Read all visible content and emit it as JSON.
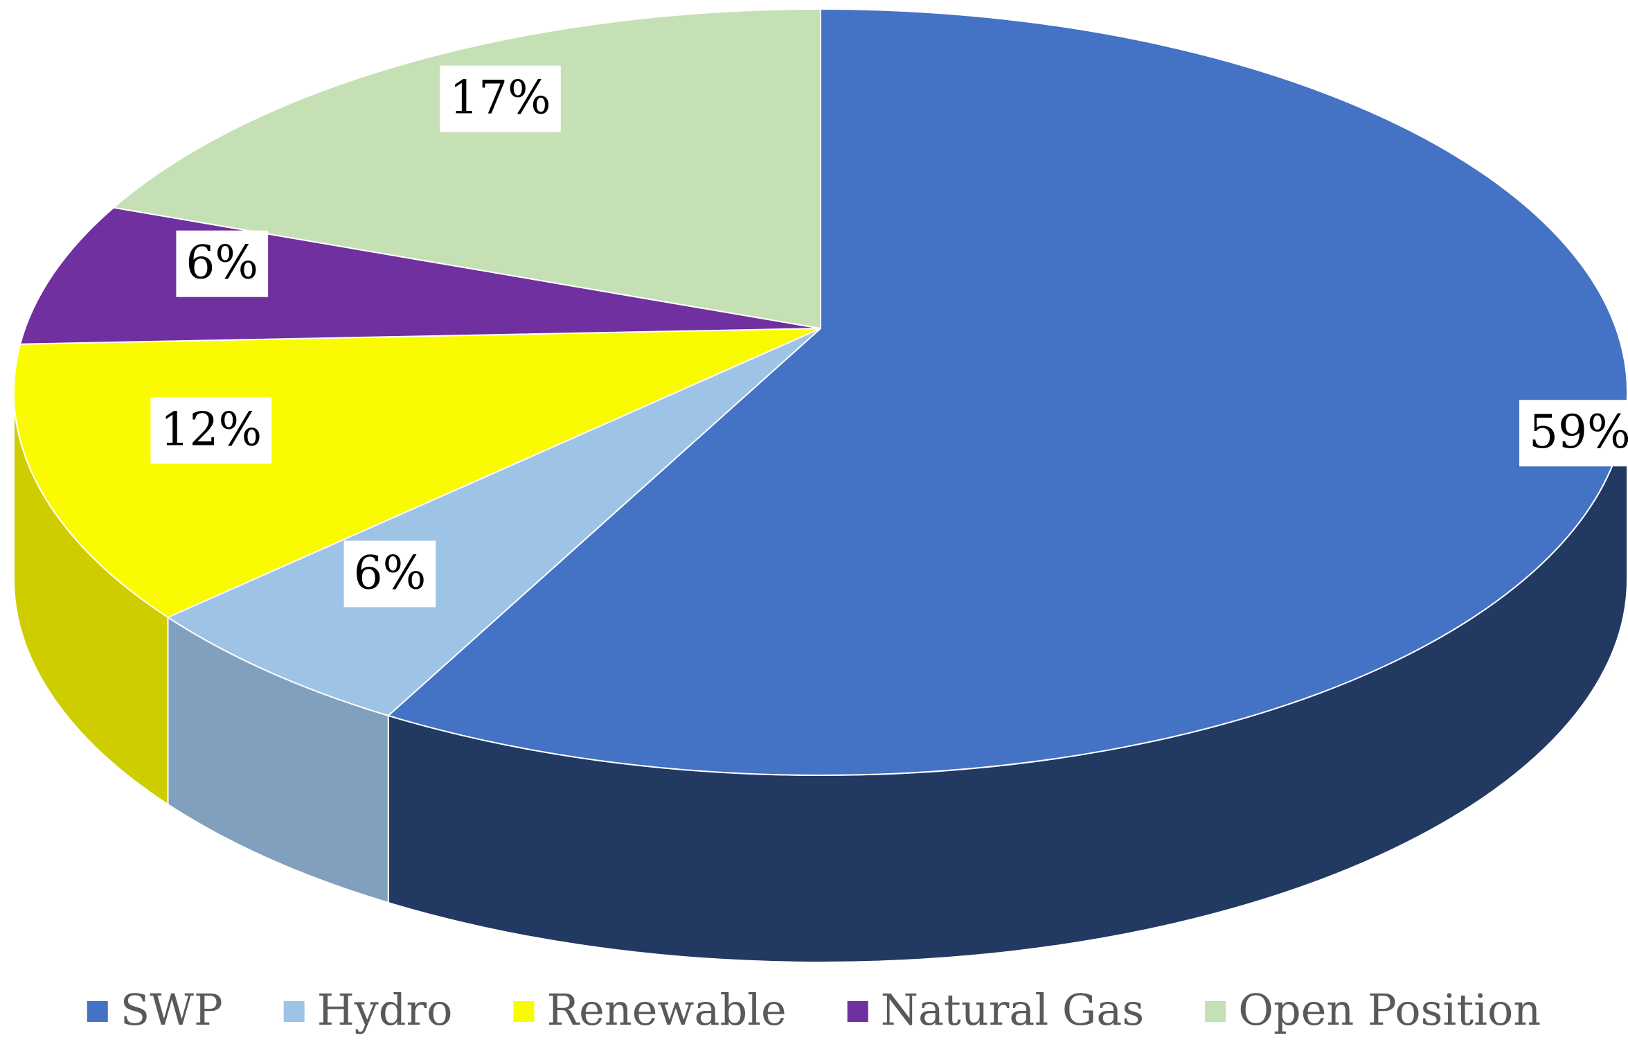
{
  "chart_data": {
    "type": "pie",
    "categories": [
      "SWP",
      "Hydro",
      "Renewable",
      "Natural Gas",
      "Open Position"
    ],
    "values": [
      59,
      6,
      12,
      6,
      17
    ],
    "value_labels": [
      "59%",
      "6%",
      "12%",
      "6%",
      "17%"
    ],
    "colors": [
      "#4472c4",
      "#9dc3e6",
      "#fafa00",
      "#7030a0",
      "#c5e0b4"
    ],
    "legend": "bottom"
  }
}
